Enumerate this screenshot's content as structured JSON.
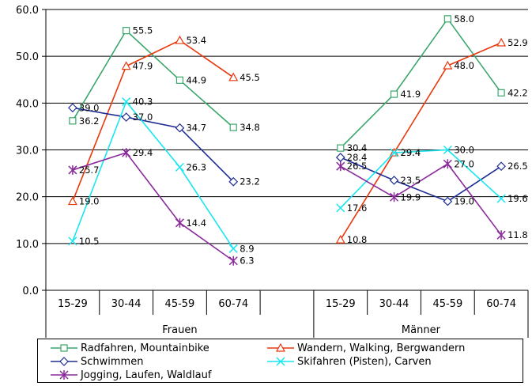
{
  "chart_data": {
    "type": "line",
    "title": "",
    "xlabel": "",
    "ylabel": "",
    "ylim": [
      0,
      60
    ],
    "yticks": [
      "0.0",
      "10.0",
      "20.0",
      "30.0",
      "40.0",
      "50.0",
      "60.0"
    ],
    "grid": true,
    "legend_position": "bottom",
    "groups": [
      {
        "label": "Frauen",
        "categories": [
          "15-29",
          "30-44",
          "45-59",
          "60-74"
        ]
      },
      {
        "label": "Männer",
        "categories": [
          "15-29",
          "30-44",
          "45-59",
          "60-74"
        ]
      }
    ],
    "series": [
      {
        "name": "Radfahren, Mountainbike",
        "color": "#3aa66b",
        "marker": "square",
        "Frauen": [
          36.2,
          55.5,
          44.9,
          34.8
        ],
        "Männer": [
          30.4,
          41.9,
          58.0,
          42.2
        ],
        "labels_frauen": [
          "36.2",
          "55.5",
          "44.9",
          "34.8"
        ],
        "labels_maenner": [
          "30.4",
          "41.9",
          "58.0",
          "42.2"
        ]
      },
      {
        "name": "Wandern, Walking, Bergwandern",
        "color": "#e8380d",
        "marker": "triangle",
        "Frauen": [
          19.0,
          47.9,
          53.4,
          45.5
        ],
        "Männer": [
          10.8,
          29.4,
          48.0,
          52.9
        ],
        "labels_frauen": [
          "19.0",
          "47.9",
          "53.4",
          "45.5"
        ],
        "labels_maenner": [
          "10.8",
          "29.4",
          "48.0",
          "52.9"
        ]
      },
      {
        "name": "Schwimmen",
        "color": "#1e2e94",
        "marker": "diamond",
        "Frauen": [
          39.0,
          37.0,
          34.7,
          23.2
        ],
        "Männer": [
          28.4,
          23.5,
          19.0,
          26.5
        ],
        "labels_frauen": [
          "39.0",
          "37.0",
          "34.7",
          "23.2"
        ],
        "labels_maenner": [
          "28.4",
          "23.5",
          "19.0",
          "26.5"
        ]
      },
      {
        "name": "Skifahren (Pisten), Carven",
        "color": "#19e6f0",
        "marker": "x",
        "Frauen": [
          10.5,
          40.3,
          26.3,
          8.9
        ],
        "Männer": [
          17.6,
          29.4,
          30.0,
          19.6
        ],
        "labels_frauen": [
          "10.5",
          "40.3",
          "26.3",
          "8.9"
        ],
        "labels_maenner": [
          "17.6",
          "29.4",
          "30.0",
          "19.6"
        ]
      },
      {
        "name": "Jogging, Laufen, Waldlauf",
        "color": "#8a2a9a",
        "marker": "star",
        "Frauen": [
          25.7,
          29.4,
          14.4,
          6.3
        ],
        "Männer": [
          26.5,
          19.9,
          27.0,
          11.8
        ],
        "labels_frauen": [
          "25.7",
          "29.4",
          "14.4",
          "6.3"
        ],
        "labels_maenner": [
          "26.5",
          "19.9",
          "27.0",
          "11.8"
        ]
      }
    ]
  }
}
